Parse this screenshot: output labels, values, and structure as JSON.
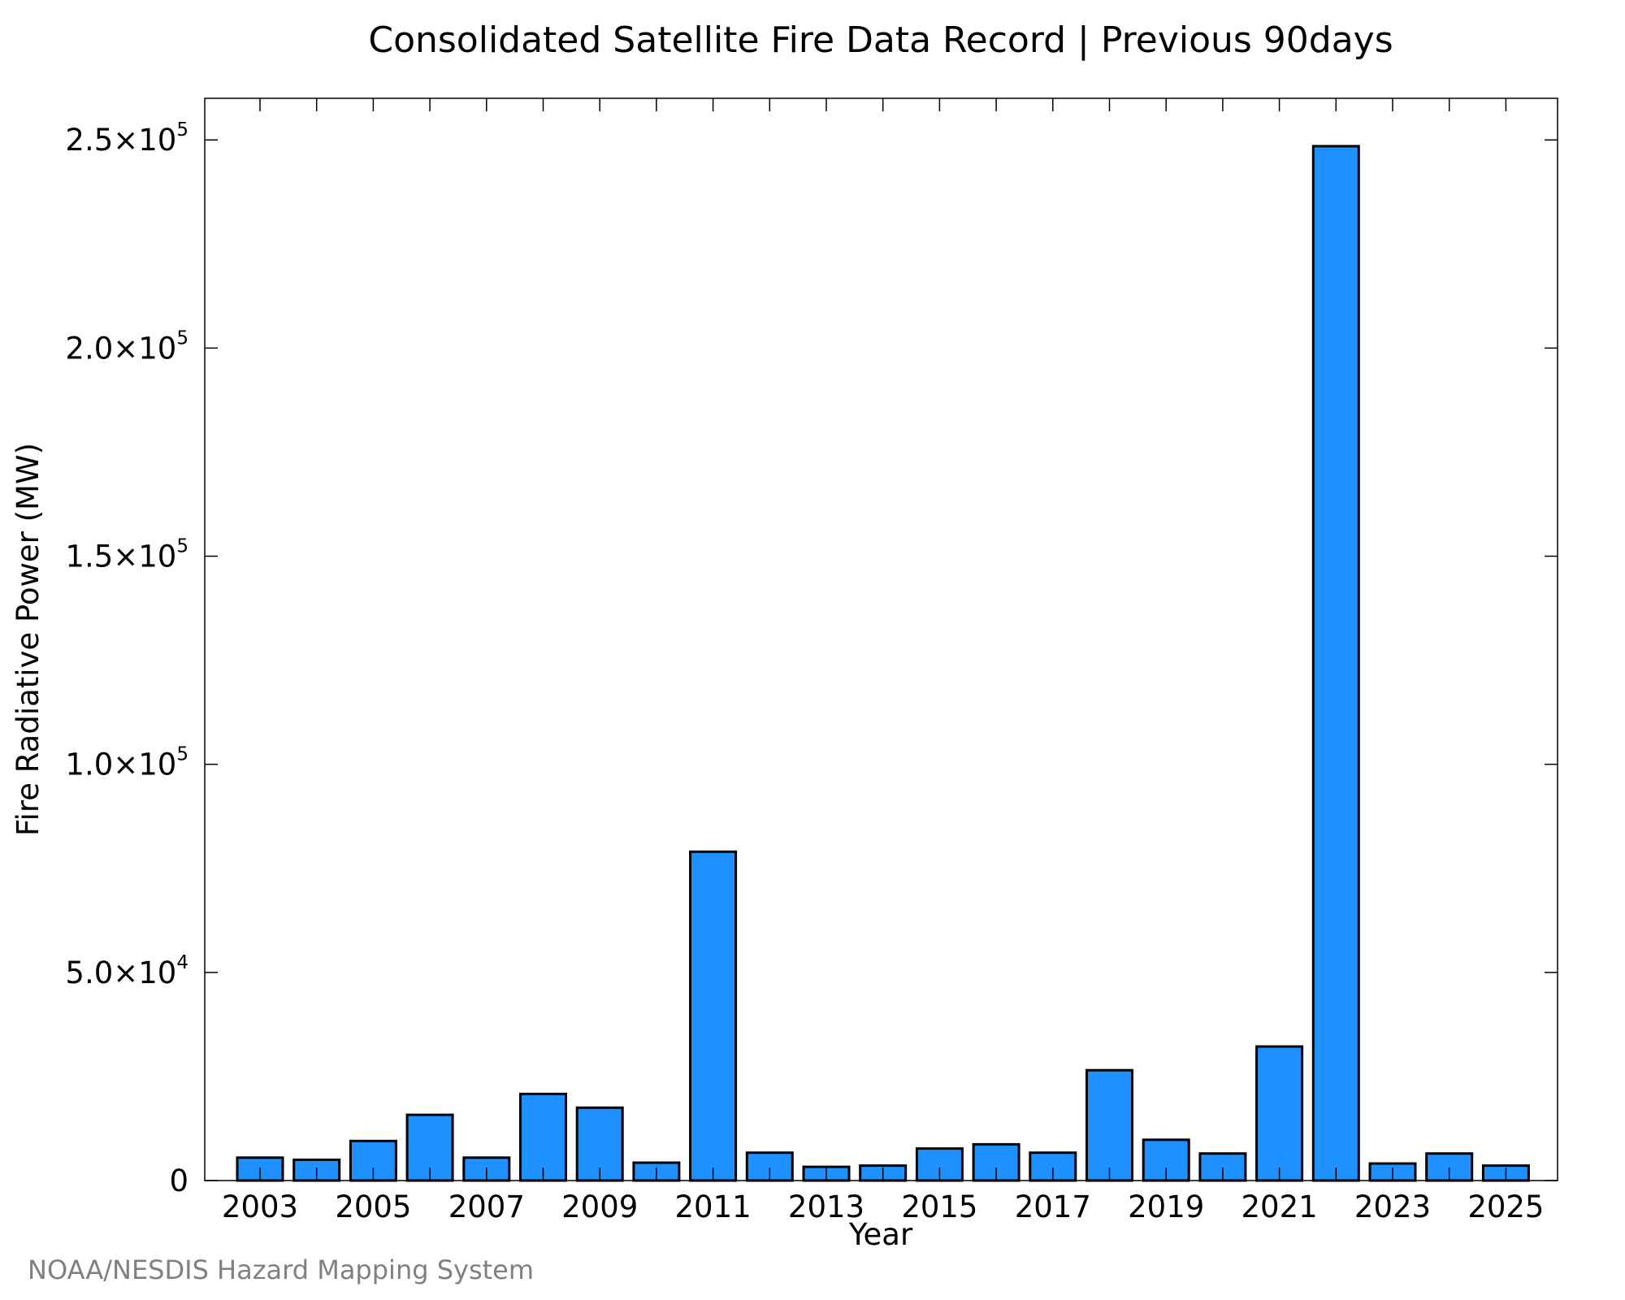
{
  "chart_data": {
    "type": "bar",
    "title": "Consolidated Satellite Fire Data Record | Previous 90days",
    "xlabel": "Year",
    "ylabel": "Fire Radiative Power (MW)",
    "categories": [
      "2003",
      "2004",
      "2005",
      "2006",
      "2007",
      "2008",
      "2009",
      "2010",
      "2011",
      "2012",
      "2013",
      "2014",
      "2015",
      "2016",
      "2017",
      "2018",
      "2019",
      "2020",
      "2021",
      "2022",
      "2023",
      "2024",
      "2025"
    ],
    "x_tick_labels": [
      "2003",
      "2005",
      "2007",
      "2009",
      "2011",
      "2013",
      "2015",
      "2017",
      "2019",
      "2021",
      "2023",
      "2025"
    ],
    "values": [
      5500,
      5000,
      9500,
      15800,
      5500,
      20800,
      17500,
      4300,
      79000,
      6700,
      3300,
      3600,
      7700,
      8700,
      6700,
      26500,
      9800,
      6500,
      32200,
      248500,
      4100,
      6500,
      3600
    ],
    "ylim": [
      0,
      260000
    ],
    "y_ticks": [
      {
        "value": 0,
        "mantissa": "0",
        "exponent": ""
      },
      {
        "value": 50000,
        "mantissa": "5.0×10",
        "exponent": "4"
      },
      {
        "value": 100000,
        "mantissa": "1.0×10",
        "exponent": "5"
      },
      {
        "value": 150000,
        "mantissa": "1.5×10",
        "exponent": "5"
      },
      {
        "value": 200000,
        "mantissa": "2.0×10",
        "exponent": "5"
      },
      {
        "value": 250000,
        "mantissa": "2.5×10",
        "exponent": "5"
      }
    ],
    "grid": false,
    "bar_color": "#1E90FF",
    "bar_edge_color": "#000000"
  },
  "credit": "NOAA/NESDIS Hazard Mapping System"
}
